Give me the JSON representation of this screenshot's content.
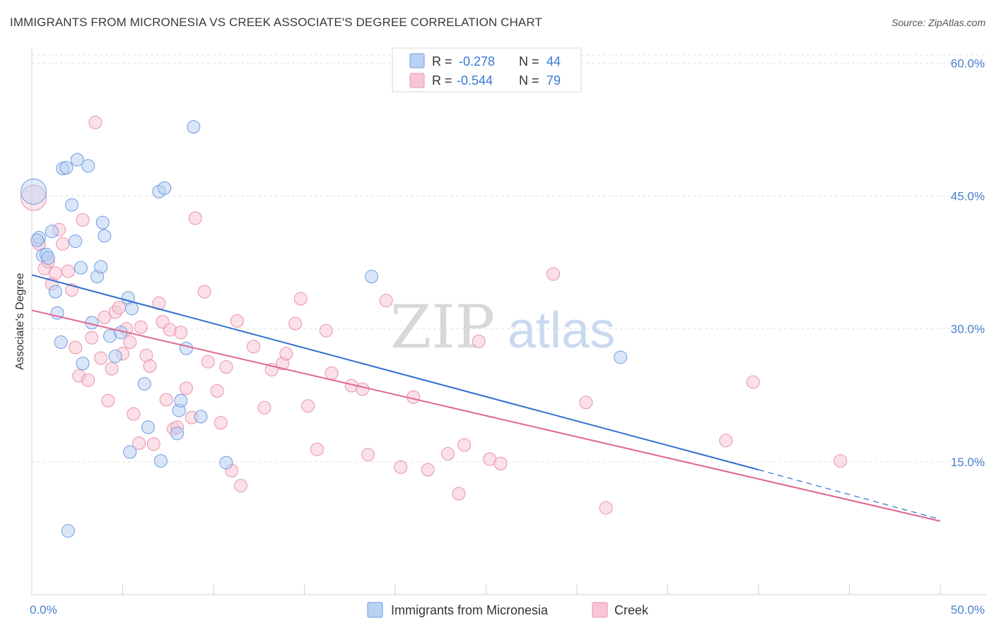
{
  "title": "IMMIGRANTS FROM MICRONESIA VS CREEK ASSOCIATE'S DEGREE CORRELATION CHART",
  "source": "Source: ZipAtlas.com",
  "watermark": {
    "part1": "ZIP",
    "part2": "atlas"
  },
  "colors": {
    "blue_fill": "#b9d2f3",
    "blue_stroke": "#6f9be0",
    "blue_line": "#2f6fd0",
    "pink_fill": "#f7c6d5",
    "pink_stroke": "#e992ad",
    "pink_line": "#e0668f",
    "axis_label": "#4a7fcf",
    "grid": "#e2e2e2"
  },
  "legend": {
    "rows": [
      {
        "r_label": "R = ",
        "r_value": "-0.278",
        "n_label": "N = ",
        "n_value": "44"
      },
      {
        "r_label": "R = ",
        "r_value": "-0.544",
        "n_label": "N = ",
        "n_value": "79"
      }
    ]
  },
  "chart_data": {
    "type": "scatter",
    "title": "IMMIGRANTS FROM MICRONESIA VS CREEK ASSOCIATE'S DEGREE CORRELATION CHART",
    "xlabel": "",
    "ylabel": "Associate's Degree",
    "xlim": [
      0,
      50
    ],
    "ylim": [
      0,
      62.5
    ],
    "x_tick_labels": [
      "0.0%",
      "50.0%"
    ],
    "y_ticks": [
      15,
      30,
      45,
      60
    ],
    "y_tick_labels": [
      "15.0%",
      "30.0%",
      "45.0%",
      "60.0%"
    ],
    "grid": true,
    "legend_position": "top-center",
    "series": [
      {
        "name": "Immigrants from Micronesia",
        "r": -0.278,
        "n": 44,
        "trend": {
          "x_start": 0,
          "y_start": 36.1,
          "x_end": 40,
          "y_end": 14.1,
          "dashed_to_x": 50,
          "dashed_to_y": 8.5
        },
        "points": [
          [
            0.1,
            45.5
          ],
          [
            0.4,
            40.3
          ],
          [
            0.3,
            40.0
          ],
          [
            0.6,
            38.3
          ],
          [
            0.8,
            38.4
          ],
          [
            0.9,
            38.0
          ],
          [
            1.1,
            41.0
          ],
          [
            1.3,
            34.2
          ],
          [
            1.4,
            31.8
          ],
          [
            1.6,
            28.5
          ],
          [
            1.7,
            48.1
          ],
          [
            1.9,
            48.2
          ],
          [
            2.2,
            44.0
          ],
          [
            2.5,
            49.1
          ],
          [
            2.4,
            39.9
          ],
          [
            2.7,
            36.9
          ],
          [
            2.8,
            26.1
          ],
          [
            3.1,
            48.4
          ],
          [
            3.3,
            30.7
          ],
          [
            3.6,
            35.9
          ],
          [
            3.8,
            37.0
          ],
          [
            3.9,
            42.0
          ],
          [
            4.0,
            40.5
          ],
          [
            4.3,
            29.2
          ],
          [
            4.6,
            26.9
          ],
          [
            4.9,
            29.6
          ],
          [
            5.3,
            33.5
          ],
          [
            5.4,
            16.1
          ],
          [
            5.5,
            32.3
          ],
          [
            6.2,
            23.8
          ],
          [
            6.4,
            18.9
          ],
          [
            7.0,
            45.5
          ],
          [
            7.1,
            15.1
          ],
          [
            7.3,
            45.9
          ],
          [
            8.1,
            20.8
          ],
          [
            8.2,
            21.9
          ],
          [
            8.0,
            18.2
          ],
          [
            8.5,
            27.8
          ],
          [
            8.9,
            52.8
          ],
          [
            9.3,
            20.1
          ],
          [
            10.7,
            14.9
          ],
          [
            18.7,
            35.9
          ],
          [
            32.4,
            26.8
          ],
          [
            2.0,
            7.2
          ]
        ]
      },
      {
        "name": "Creek",
        "r": -0.544,
        "n": 79,
        "trend": {
          "x_start": 0,
          "y_start": 32.1,
          "x_end": 50,
          "y_end": 8.3
        },
        "points": [
          [
            0.1,
            44.8
          ],
          [
            0.4,
            39.6
          ],
          [
            0.7,
            36.8
          ],
          [
            0.9,
            37.6
          ],
          [
            1.1,
            35.1
          ],
          [
            1.3,
            36.3
          ],
          [
            1.5,
            41.2
          ],
          [
            1.7,
            39.6
          ],
          [
            2.0,
            36.5
          ],
          [
            2.2,
            34.4
          ],
          [
            2.4,
            27.9
          ],
          [
            2.6,
            24.7
          ],
          [
            2.8,
            42.3
          ],
          [
            3.1,
            24.2
          ],
          [
            3.3,
            29.0
          ],
          [
            3.5,
            53.3
          ],
          [
            3.8,
            26.7
          ],
          [
            4.0,
            31.3
          ],
          [
            4.2,
            21.9
          ],
          [
            4.4,
            25.5
          ],
          [
            4.6,
            31.9
          ],
          [
            4.8,
            32.4
          ],
          [
            5.0,
            27.2
          ],
          [
            5.2,
            30.0
          ],
          [
            5.4,
            28.5
          ],
          [
            5.6,
            20.4
          ],
          [
            5.9,
            17.1
          ],
          [
            6.0,
            30.2
          ],
          [
            6.3,
            27.0
          ],
          [
            6.5,
            25.8
          ],
          [
            6.7,
            17.0
          ],
          [
            7.0,
            32.9
          ],
          [
            7.2,
            30.8
          ],
          [
            7.4,
            22.0
          ],
          [
            7.6,
            29.9
          ],
          [
            7.8,
            18.7
          ],
          [
            8.0,
            18.9
          ],
          [
            8.2,
            29.6
          ],
          [
            8.5,
            23.3
          ],
          [
            8.8,
            20.0
          ],
          [
            9.0,
            42.5
          ],
          [
            9.5,
            34.2
          ],
          [
            9.7,
            26.3
          ],
          [
            10.2,
            23.0
          ],
          [
            10.4,
            19.4
          ],
          [
            10.7,
            25.7
          ],
          [
            11.0,
            14.0
          ],
          [
            11.3,
            30.9
          ],
          [
            11.5,
            12.3
          ],
          [
            12.2,
            28.0
          ],
          [
            12.8,
            21.1
          ],
          [
            13.2,
            25.4
          ],
          [
            13.8,
            26.1
          ],
          [
            14.0,
            27.2
          ],
          [
            14.5,
            30.6
          ],
          [
            14.8,
            33.4
          ],
          [
            15.2,
            21.3
          ],
          [
            15.7,
            16.4
          ],
          [
            16.2,
            29.8
          ],
          [
            16.5,
            25.0
          ],
          [
            17.6,
            23.6
          ],
          [
            18.2,
            23.2
          ],
          [
            18.5,
            15.8
          ],
          [
            19.5,
            33.2
          ],
          [
            20.3,
            14.4
          ],
          [
            21.0,
            22.3
          ],
          [
            21.8,
            14.1
          ],
          [
            22.9,
            15.9
          ],
          [
            23.5,
            11.4
          ],
          [
            23.8,
            16.9
          ],
          [
            24.6,
            28.6
          ],
          [
            25.2,
            15.3
          ],
          [
            25.8,
            14.8
          ],
          [
            28.7,
            36.2
          ],
          [
            30.5,
            21.7
          ],
          [
            31.6,
            9.8
          ],
          [
            38.2,
            17.4
          ],
          [
            39.7,
            24.0
          ],
          [
            44.5,
            15.1
          ]
        ]
      }
    ]
  }
}
